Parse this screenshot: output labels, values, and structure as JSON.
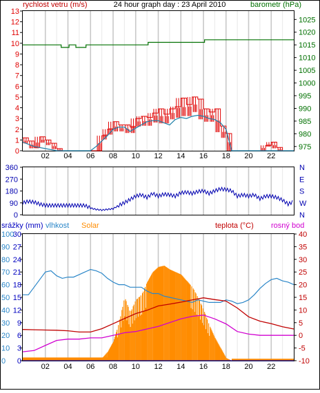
{
  "colors": {
    "wind": "#e00000",
    "wind_avg": "#1e7fa8",
    "pressure": "#007000",
    "direction": "#0000b0",
    "humidity": "#2a86c8",
    "solar": "#ff8c00",
    "temperature": "#c00000",
    "dew_point": "#d000d0",
    "precip": "#0000c0",
    "grid_major": "#c8c8c8",
    "grid_minor": "#e8e8e8"
  },
  "chart_data": [
    {
      "type": "line",
      "title": "24 hour graph day : 23 April 2010",
      "ylabel": "rychlost vetru (m/s)",
      "y2label": "barometr (hPa)",
      "ylim": [
        0,
        13
      ],
      "y2lim": [
        973.33,
        1028.33
      ],
      "yticks": [
        "0",
        "1",
        "2",
        "3",
        "4",
        "5",
        "6",
        "7",
        "8",
        "9",
        "10",
        "11",
        "12",
        "13"
      ],
      "y2ticks": [
        "975",
        "980",
        "985",
        "990",
        "995",
        "1000",
        "1005",
        "1010",
        "1015",
        "1020",
        "1025"
      ],
      "xticks": [
        "02",
        "04",
        "06",
        "08",
        "10",
        "12",
        "14",
        "16",
        "18",
        "20",
        "22"
      ],
      "series": [
        {
          "name": "",
          "x": [
            0,
            0.5,
            1,
            1.5,
            2,
            2.5,
            3,
            3.5,
            4,
            4.5,
            5,
            5.5,
            6,
            6.5,
            7,
            7.5,
            8,
            8.5,
            9,
            9.5,
            10,
            10.5,
            11,
            11.5,
            12,
            12.5,
            13,
            13.5,
            14,
            14.5,
            15,
            15.5,
            16,
            16.5,
            17,
            17.5,
            18,
            18.5,
            19,
            19.5,
            20,
            20.5,
            21,
            21.5,
            22,
            22.5,
            23,
            23.5,
            24
          ],
          "y": [
            1.2,
            0.9,
            0.3,
            1.3,
            1.0,
            0.7,
            0.2,
            0,
            0,
            0,
            0,
            0,
            0,
            0,
            1.4,
            2.0,
            2.7,
            2.4,
            2.4,
            2.2,
            3.0,
            3.2,
            3.1,
            3.5,
            3.9,
            3.4,
            3.9,
            4.1,
            4.9,
            4.3,
            5.0,
            4.8,
            3.9,
            3.6,
            3.9,
            2.3,
            1.6,
            0,
            0,
            0,
            0,
            0,
            0,
            0.5,
            0.8,
            0.3,
            0,
            0,
            0
          ]
        },
        {
          "name": "",
          "x": [
            0,
            1,
            2,
            3,
            4,
            5,
            6,
            6.5,
            7,
            7.5,
            8,
            8.5,
            9,
            9.5,
            10,
            10.5,
            11,
            11.5,
            12,
            12.5,
            13,
            13.5,
            14,
            14.5,
            15,
            15.5,
            16,
            16.5,
            17,
            17.5,
            18,
            18.5,
            19,
            20,
            21,
            22,
            23,
            24
          ],
          "y": [
            0.8,
            0.4,
            0.2,
            0,
            0,
            0,
            0,
            0.4,
            0.9,
            1.4,
            2.0,
            2.2,
            2.2,
            1.8,
            2.1,
            2.4,
            2.7,
            2.8,
            2.8,
            2.6,
            2.4,
            2.9,
            3.1,
            3.0,
            3.2,
            3.3,
            3.2,
            3.0,
            2.9,
            2.6,
            2.0,
            0,
            0,
            0,
            0,
            0,
            0,
            0
          ]
        },
        {
          "name": "",
          "axis": "y2",
          "x": [
            0,
            3.3,
            3.4,
            4.0,
            4.1,
            4.6,
            4.7,
            5.5,
            5.6,
            11,
            11.1,
            16,
            16.1,
            24
          ],
          "y": [
            1015,
            1015,
            1014,
            1014,
            1015,
            1015,
            1014,
            1014,
            1015,
            1015,
            1016,
            1016,
            1017,
            1017
          ]
        }
      ]
    },
    {
      "type": "line",
      "ylim": [
        0,
        360
      ],
      "yticks": [
        "0",
        "90",
        "180",
        "270",
        "360"
      ],
      "y2ticks": [
        "N",
        "W",
        "S",
        "E",
        "N"
      ],
      "xticks": [],
      "series": [
        {
          "name": "",
          "x": [
            0,
            0.5,
            1,
            1.5,
            2,
            2.5,
            3,
            3.5,
            4,
            4.5,
            5,
            5.5,
            6,
            6.5,
            7,
            7.5,
            8,
            8.5,
            9,
            9.5,
            10,
            10.5,
            11,
            11.5,
            12,
            12.5,
            13,
            13.5,
            14,
            14.5,
            15,
            15.5,
            16,
            16.5,
            17,
            17.5,
            18,
            18.5,
            19,
            19.5,
            20,
            20.5,
            21,
            21.5,
            22,
            22.5,
            23,
            23.5,
            24
          ],
          "y": [
            90,
            100,
            95,
            80,
            70,
            70,
            70,
            70,
            70,
            70,
            70,
            70,
            50,
            40,
            35,
            40,
            45,
            70,
            90,
            115,
            140,
            150,
            130,
            160,
            140,
            155,
            150,
            140,
            165,
            170,
            160,
            175,
            180,
            160,
            180,
            195,
            190,
            180,
            140,
            150,
            140,
            150,
            120,
            140,
            140,
            130,
            110,
            80,
            100
          ]
        }
      ]
    },
    {
      "type": "area",
      "ylabel": "srážky (mm)",
      "ylabel2": "vlhkost",
      "ylabel3": "Solar",
      "y2label": "teplota (°C)",
      "y2label2": "rosný bod",
      "ylim": [
        0,
        100
      ],
      "ylim_precip": [
        0,
        30
      ],
      "y2lim": [
        -10,
        40
      ],
      "yticks": [
        "0",
        "10",
        "20",
        "30",
        "40",
        "50",
        "60",
        "70",
        "80",
        "90",
        "100"
      ],
      "yticks_precip": [
        "0",
        "3",
        "6",
        "9",
        "12",
        "15",
        "18",
        "21",
        "24",
        "27",
        "30"
      ],
      "y2ticks": [
        "-10",
        "-5",
        "0",
        "5",
        "10",
        "15",
        "20",
        "25",
        "30",
        "35",
        "40"
      ],
      "xticks": [
        "02",
        "04",
        "06",
        "08",
        "10",
        "12",
        "14",
        "16",
        "18",
        "20",
        "22"
      ],
      "series": [
        {
          "name": "vlhkost",
          "x": [
            0,
            0.5,
            1,
            1.5,
            2,
            2.5,
            3,
            3.5,
            4,
            4.5,
            5,
            5.5,
            6,
            6.5,
            7,
            7.5,
            8,
            8.5,
            9,
            9.5,
            10,
            10.5,
            11,
            11.5,
            12,
            12.5,
            13,
            13.5,
            14,
            14.5,
            15,
            15.5,
            16,
            16.5,
            17,
            17.5,
            18,
            18.5,
            19,
            19.5,
            20,
            20.5,
            21,
            21.5,
            22,
            22.5,
            23,
            23.5,
            24
          ],
          "y": [
            52,
            52,
            58,
            64,
            70,
            71,
            67,
            65,
            66,
            66,
            68,
            70,
            72,
            71,
            69,
            65,
            62,
            60,
            60,
            58,
            58,
            58,
            55,
            53,
            53,
            51,
            50,
            49,
            48,
            47,
            46,
            48,
            47,
            46,
            46,
            46,
            48,
            47,
            45,
            46,
            48,
            52,
            57,
            61,
            64,
            65,
            63,
            62,
            60
          ]
        },
        {
          "name": "Solar",
          "x": [
            0,
            6.5,
            7,
            7.5,
            8,
            8.5,
            9,
            9.5,
            10,
            10.5,
            11,
            11.5,
            12,
            12.5,
            13,
            13.5,
            14,
            14.5,
            15,
            15.5,
            16,
            16.5,
            17,
            17.5,
            18,
            18.5,
            19,
            24
          ],
          "y": [
            0,
            0,
            2,
            7,
            15,
            30,
            50,
            38,
            48,
            52,
            62,
            70,
            74,
            75,
            72,
            70,
            68,
            63,
            58,
            50,
            40,
            28,
            18,
            10,
            2,
            0,
            0,
            0
          ]
        },
        {
          "name": "teplota",
          "axis": "y2",
          "x": [
            0,
            1,
            2,
            3,
            4,
            5,
            6,
            7,
            8,
            9,
            10,
            11,
            12,
            13,
            14,
            15,
            16,
            17,
            18,
            19,
            20,
            21,
            22,
            23,
            24
          ],
          "y": [
            2.3,
            2.2,
            2.1,
            2.0,
            1.8,
            1.3,
            1.3,
            2.6,
            4.6,
            6.6,
            8.6,
            9.9,
            11.6,
            12.3,
            13.1,
            14.0,
            14.8,
            14.1,
            13.5,
            10.8,
            7.3,
            5.6,
            4.6,
            3.4,
            2.5
          ]
        },
        {
          "name": "rosný bod",
          "axis": "y2",
          "x": [
            0,
            1,
            2,
            3,
            4,
            5,
            6,
            7,
            8,
            9,
            10,
            11,
            12,
            13,
            14,
            15,
            16,
            17,
            18,
            19,
            20,
            21,
            22,
            23,
            24
          ],
          "y": [
            -6.5,
            -6.0,
            -4.0,
            -2.0,
            -1.5,
            -1.5,
            -1.0,
            -1.0,
            0.0,
            1.0,
            1.5,
            2.5,
            3.5,
            5.0,
            6.5,
            7.5,
            8.0,
            6.5,
            4.5,
            1.5,
            0.5,
            0.0,
            0.0,
            0.0,
            0.0
          ]
        },
        {
          "name": "srážky",
          "axis": "precip",
          "x": [
            0,
            24
          ],
          "y": [
            0,
            0
          ]
        }
      ]
    }
  ]
}
